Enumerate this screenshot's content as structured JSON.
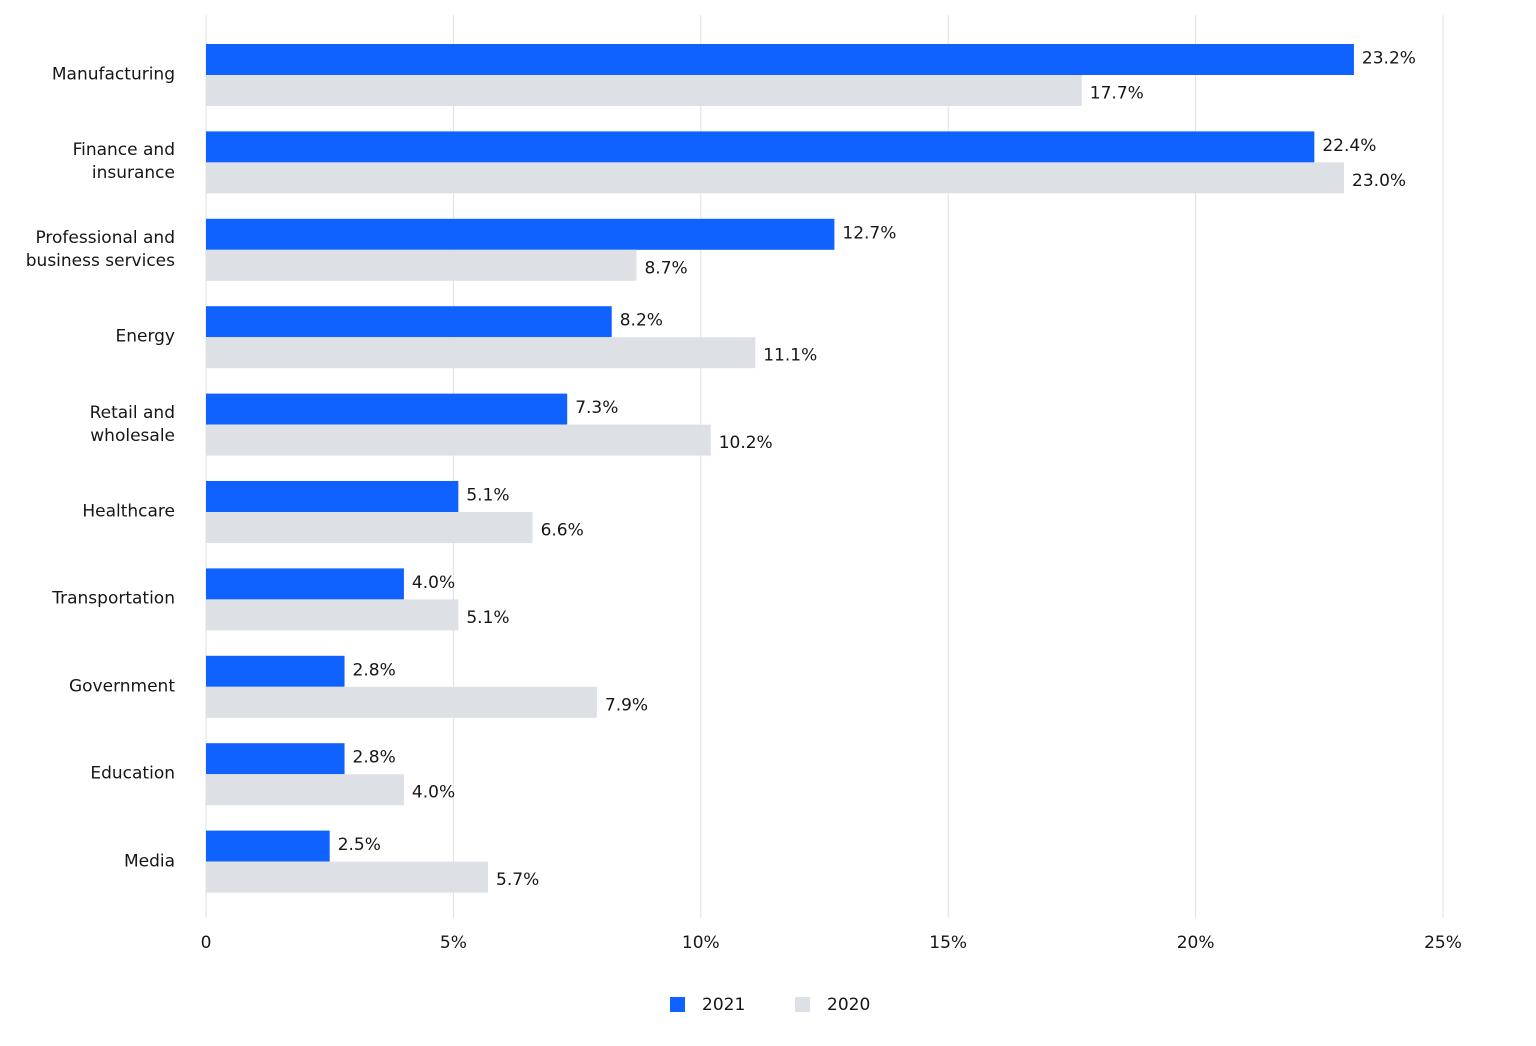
{
  "chart_data": {
    "type": "bar",
    "orientation": "horizontal",
    "categories": [
      "Manufacturing",
      "Finance and insurance",
      "Professional and business services",
      "Energy",
      "Retail and wholesale",
      "Healthcare",
      "Transportation",
      "Government",
      "Education",
      "Media"
    ],
    "series": [
      {
        "name": "2021",
        "color": "#0f62fe",
        "values": [
          23.2,
          22.4,
          12.7,
          8.2,
          7.3,
          5.1,
          4.0,
          2.8,
          2.8,
          2.5
        ],
        "value_labels": [
          "23.2%",
          "22.4%",
          "12.7%",
          "8.2%",
          "7.3%",
          "5.1%",
          "4.0%",
          "2.8%",
          "2.8%",
          "2.5%"
        ]
      },
      {
        "name": "2020",
        "color": "#dde1e6",
        "values": [
          17.7,
          23.0,
          8.7,
          11.1,
          10.2,
          6.6,
          5.1,
          7.9,
          4.0,
          5.7
        ],
        "value_labels": [
          "17.7%",
          "23.0%",
          "8.7%",
          "11.1%",
          "10.2%",
          "6.6%",
          "5.1%",
          "7.9%",
          "4.0%",
          "5.7%"
        ]
      }
    ],
    "xlim": [
      0,
      25
    ],
    "xticks": [
      0,
      {
        "value": 5,
        "label": "5%"
      },
      {
        "value": 10,
        "label": "10%"
      },
      {
        "value": 15,
        "label": "15%"
      },
      {
        "value": 20,
        "label": "20%"
      },
      {
        "value": 25,
        "label": "25%"
      }
    ],
    "grid": true,
    "legend": "bottom"
  }
}
